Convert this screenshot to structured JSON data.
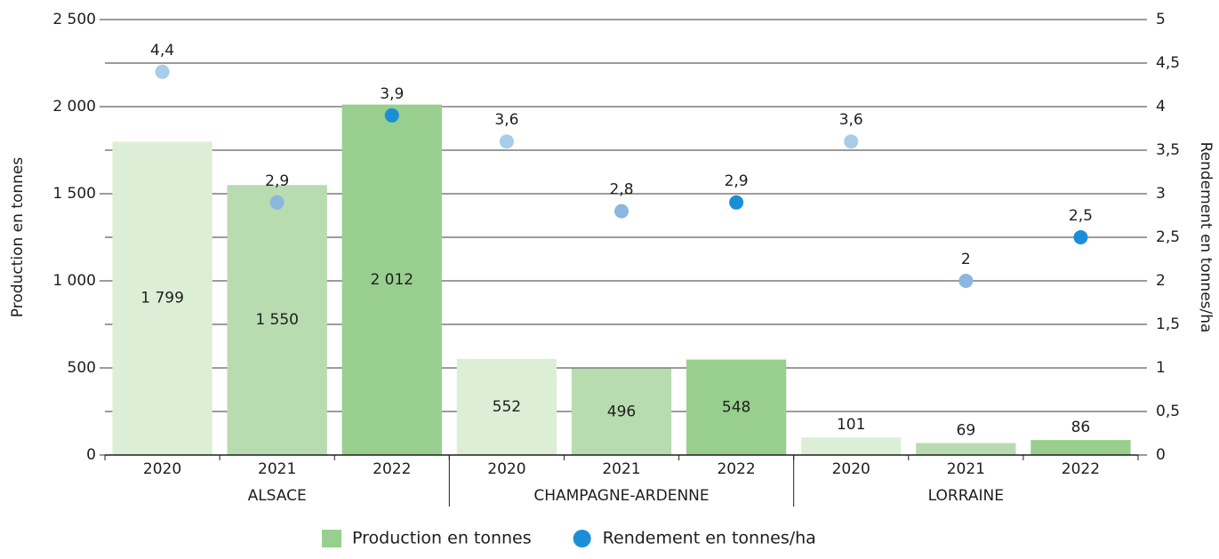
{
  "chart_data": {
    "type": "bar",
    "ylabel": "Production en tonnes",
    "y2label": "Rendement en tonnes/ha",
    "categories": [
      "2020",
      "2021",
      "2022",
      "2020",
      "2021",
      "2022",
      "2020",
      "2021",
      "2022"
    ],
    "groups": [
      "ALSACE",
      "CHAMPAGNE-ARDENNE",
      "LORRAINE"
    ],
    "ylim": [
      0,
      2500
    ],
    "yticks": [
      0,
      500,
      {
        "value": 1000,
        "label": "1 000"
      },
      {
        "value": 1500,
        "label": "1 500"
      },
      {
        "value": 2000,
        "label": "2 000"
      },
      {
        "value": 2500,
        "label": "2 500"
      }
    ],
    "y2lim": [
      0,
      5
    ],
    "y2ticks": [
      0,
      {
        "value": 0.5,
        "label": "0,5"
      },
      1,
      {
        "value": 1.5,
        "label": "1,5"
      },
      2,
      {
        "value": 2.5,
        "label": "2,5"
      },
      3,
      {
        "value": 3.5,
        "label": "3,5"
      },
      4,
      {
        "value": 4.5,
        "label": "4,5"
      },
      5
    ],
    "grid": true,
    "legend": "bottom",
    "series": [
      {
        "name": "Production en tonnes",
        "type": "bar",
        "color": "#98cf8e",
        "colors": [
          "#dcefd6",
          "#b8dcb0",
          "#98cf8e",
          "#dcefd6",
          "#b8dcb0",
          "#98cf8e",
          "#dcefd6",
          "#b8dcb0",
          "#98cf8e"
        ],
        "values": [
          1799,
          1550,
          2012,
          552,
          496,
          548,
          101,
          69,
          86
        ],
        "value_labels": [
          "1 799",
          "1 550",
          "2 012",
          "552",
          "496",
          "548",
          "101",
          "69",
          "86"
        ]
      },
      {
        "name": "Rendement en tonnes/ha",
        "type": "scatter",
        "axis": "y2",
        "color": "#1a8fd8",
        "colors": [
          "#a8cde8",
          "#8ab6e0",
          "#1a8fd8",
          "#a8cde8",
          "#8ab6e0",
          "#1a8fd8",
          "#a8cde8",
          "#8ab6e0",
          "#1a8fd8"
        ],
        "values": [
          4.4,
          2.9,
          3.9,
          3.6,
          2.8,
          2.9,
          3.6,
          2,
          2.5
        ],
        "value_labels": [
          "4,4",
          "2,9",
          "3,9",
          "3,6",
          "2,8",
          "2,9",
          "3,6",
          "2",
          "2,5"
        ]
      }
    ]
  }
}
